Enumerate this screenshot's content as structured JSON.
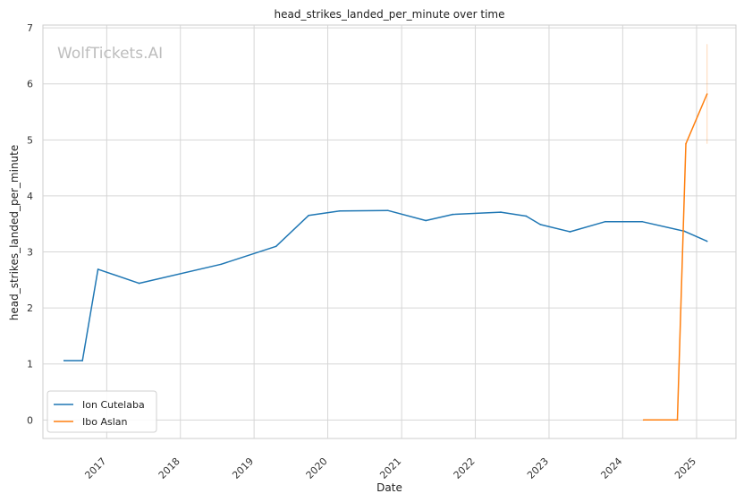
{
  "chart_data": {
    "type": "line",
    "title": "head_strikes_landed_per_minute over time",
    "xlabel": "Date",
    "ylabel": "head_strikes_landed_per_minute",
    "watermark": "WolfTickets.AI",
    "x_ticks": [
      "2017",
      "2018",
      "2019",
      "2020",
      "2021",
      "2022",
      "2023",
      "2024",
      "2025"
    ],
    "y_ticks": [
      0,
      1,
      2,
      3,
      4,
      5,
      6,
      7
    ],
    "xlim": [
      "2016-02-20",
      "2025-07-15"
    ],
    "ylim": [
      -0.33,
      7.05
    ],
    "grid": true,
    "legend_position": "lower-left",
    "series": [
      {
        "name": "Ion Cutelaba",
        "color": "#1f77b4",
        "points": [
          {
            "x": "2016-06-04",
            "y": 1.06
          },
          {
            "x": "2016-09-03",
            "y": 1.06
          },
          {
            "x": "2016-11-19",
            "y": 2.69
          },
          {
            "x": "2017-06-10",
            "y": 2.44
          },
          {
            "x": "2018-07-22",
            "y": 2.78
          },
          {
            "x": "2019-04-20",
            "y": 3.1
          },
          {
            "x": "2019-09-28",
            "y": 3.65
          },
          {
            "x": "2020-02-29",
            "y": 3.73
          },
          {
            "x": "2020-10-24",
            "y": 3.74
          },
          {
            "x": "2021-05-01",
            "y": 3.56
          },
          {
            "x": "2021-09-11",
            "y": 3.67
          },
          {
            "x": "2022-05-07",
            "y": 3.71
          },
          {
            "x": "2022-09-10",
            "y": 3.64
          },
          {
            "x": "2022-11-19",
            "y": 3.49
          },
          {
            "x": "2023-04-15",
            "y": 3.36
          },
          {
            "x": "2023-10-07",
            "y": 3.54
          },
          {
            "x": "2024-04-06",
            "y": 3.54
          },
          {
            "x": "2024-11-02",
            "y": 3.37
          },
          {
            "x": "2025-02-22",
            "y": 3.19
          }
        ]
      },
      {
        "name": "Ibo Aslan",
        "color": "#ff7f0e",
        "points": [
          {
            "x": "2024-04-13",
            "y": 0.0
          },
          {
            "x": "2024-09-28",
            "y": 0.0
          },
          {
            "x": "2024-11-09",
            "y": 4.93
          },
          {
            "x": "2025-02-22",
            "y": 5.82
          }
        ],
        "band": {
          "x": "2025-02-22",
          "low": 4.93,
          "high": 6.71
        }
      }
    ]
  }
}
